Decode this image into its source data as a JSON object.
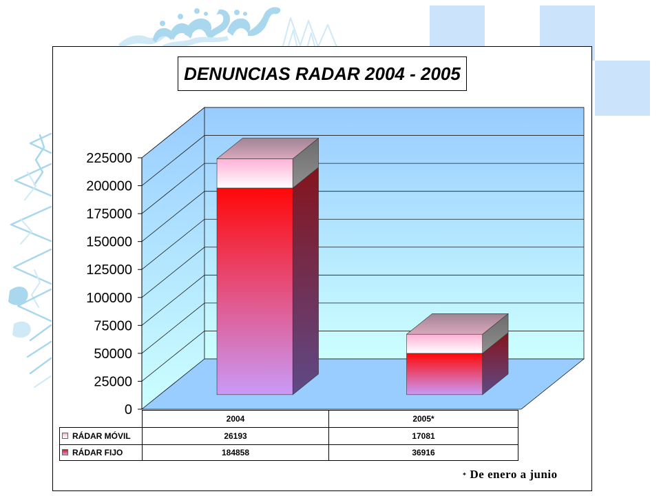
{
  "slide": {
    "ornament_color": "#a9d7ee",
    "ornament_light_color": "#cfe9f6",
    "square_color": "#cbe3fb"
  },
  "chart_data": {
    "type": "bar",
    "stacked": true,
    "three_d": true,
    "title": "DENUNCIAS RADAR 2004 - 2005",
    "xlabel": "",
    "ylabel": "",
    "categories": [
      "2004",
      "2005*"
    ],
    "series": [
      {
        "name": "RÁDAR MÓVIL",
        "values": [
          26193,
          17081
        ],
        "colors": {
          "front_top": "#ffb0d6",
          "front_bottom": "#ffffff",
          "side_top": "#6c6c6c",
          "side_bottom": "#8f8f8f"
        }
      },
      {
        "name": "RÁDAR FIJO",
        "values": [
          184858,
          36916
        ],
        "colors": {
          "front_top": "#ff0808",
          "front_bottom": "#c99af8",
          "side_top": "#85141c",
          "side_bottom": "#5e4a87"
        }
      }
    ],
    "ylim": [
      0,
      225000
    ],
    "yticks": [
      0,
      25000,
      50000,
      75000,
      100000,
      125000,
      150000,
      175000,
      200000,
      225000
    ],
    "grid": true,
    "legend": "data-table-below",
    "wall_colors": {
      "top": "#99ccff",
      "bottom": "#ccffff",
      "floor": "#99ccff"
    },
    "top_face_colors": {
      "back": "#a08494",
      "front": "#d9a8bc"
    },
    "footnote_mark": "*",
    "footnote": "De enero a junio"
  }
}
